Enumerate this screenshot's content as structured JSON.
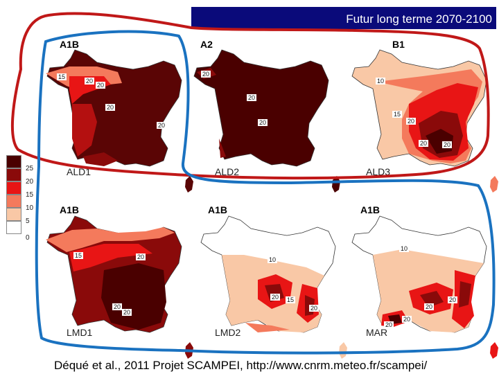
{
  "header": {
    "title": "Futur long terme 2070-2100"
  },
  "legend": {
    "ticks": [
      "25",
      "20",
      "15",
      "10",
      "5",
      "0"
    ],
    "classes": [
      {
        "label": "> 25",
        "color": "#4a0000"
      },
      {
        "label": "20-25",
        "color": "#8a0a0a"
      },
      {
        "label": "15-20",
        "color": "#e81515"
      },
      {
        "label": "10-15",
        "color": "#f47a5c"
      },
      {
        "label": "5-10",
        "color": "#f9c8a6"
      },
      {
        "label": "0-5",
        "color": "#ffffff"
      }
    ]
  },
  "panels": [
    {
      "scenario": "A1B",
      "model": "ALD1",
      "contours": [
        "15",
        "20",
        "20",
        "20",
        "20"
      ],
      "dominant_color": "#5a0505"
    },
    {
      "scenario": "A2",
      "model": "ALD2",
      "contours": [
        "20",
        "20",
        "20"
      ],
      "dominant_color": "#4a0000"
    },
    {
      "scenario": "B1",
      "model": "ALD3",
      "contours": [
        "10",
        "15",
        "20",
        "20",
        "20"
      ],
      "dominant_color": "#f9c8a6"
    },
    {
      "scenario": "A1B",
      "model": "LMD1",
      "contours": [
        "15",
        "20",
        "20",
        "20"
      ],
      "dominant_color": "#8a0a0a"
    },
    {
      "scenario": "A1B",
      "model": "LMD2",
      "contours": [
        "10",
        "20",
        "15",
        "20"
      ],
      "dominant_color": "#f9c8a6"
    },
    {
      "scenario": "A1B",
      "model": "MAR",
      "contours": [
        "10",
        "20",
        "20",
        "20",
        "20"
      ],
      "dominant_color": "#f9c8a6"
    }
  ],
  "annotations": {
    "red_outline_color": "#c01818",
    "blue_outline_color": "#1a72c0"
  },
  "citation": "Déqué et al., 2011 Projet SCAMPEI, http://www.cnrm.meteo.fr/scampei/"
}
